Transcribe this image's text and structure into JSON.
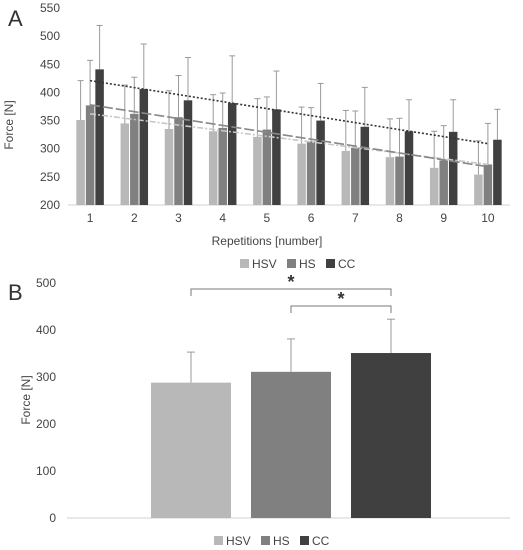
{
  "colors": {
    "HSV": "#b8b8b8",
    "HS": "#808080",
    "CC": "#404040",
    "axis": "#d0d0d0",
    "text": "#444444",
    "error": "#9a9a9a"
  },
  "chart_data": [
    {
      "panel": "A",
      "type": "bar",
      "xlabel": "Repetitions [number]",
      "ylabel": "Force [N]",
      "ylim": [
        200,
        550
      ],
      "yticks": [
        200,
        250,
        300,
        350,
        400,
        450,
        500,
        550
      ],
      "categories": [
        "1",
        "2",
        "3",
        "4",
        "5",
        "6",
        "7",
        "8",
        "9",
        "10"
      ],
      "legend_position": "bottom",
      "series": [
        {
          "name": "HSV",
          "values": [
            351,
            345,
            335,
            331,
            321,
            309,
            296,
            285,
            266,
            254
          ],
          "errors": [
            70,
            68,
            68,
            65,
            68,
            65,
            72,
            68,
            65,
            60
          ],
          "trend": [
            362,
            272
          ]
        },
        {
          "name": "HS",
          "values": [
            377,
            362,
            356,
            337,
            334,
            313,
            302,
            286,
            279,
            272
          ],
          "errors": [
            80,
            65,
            74,
            62,
            58,
            60,
            65,
            68,
            62,
            73
          ],
          "trend": [
            378,
            268
          ]
        },
        {
          "name": "CC",
          "values": [
            441,
            406,
            386,
            381,
            370,
            350,
            339,
            331,
            330,
            316
          ],
          "errors": [
            78,
            80,
            76,
            84,
            68,
            66,
            70,
            56,
            57,
            54
          ],
          "trend": [
            421,
            309
          ]
        }
      ]
    },
    {
      "panel": "B",
      "type": "bar",
      "xlabel": "",
      "ylabel": "Force [N]",
      "ylim": [
        0,
        500
      ],
      "yticks": [
        0,
        100,
        200,
        300,
        400,
        500
      ],
      "categories": [
        "HSV",
        "HS",
        "CC"
      ],
      "values": [
        288,
        311,
        351
      ],
      "errors": [
        65,
        70,
        72
      ],
      "significance": [
        {
          "from": "HSV",
          "to": "CC",
          "label": "*"
        },
        {
          "from": "HS",
          "to": "CC",
          "label": "*"
        }
      ],
      "legend_position": "bottom"
    }
  ],
  "panelA": {
    "label": "A",
    "ylabel": "Force [N]",
    "xlabel": "Repetitions [number]"
  },
  "panelB": {
    "label": "B",
    "ylabel": "Force [N]"
  },
  "legend": {
    "items": [
      "HSV",
      "HS",
      "CC"
    ]
  }
}
